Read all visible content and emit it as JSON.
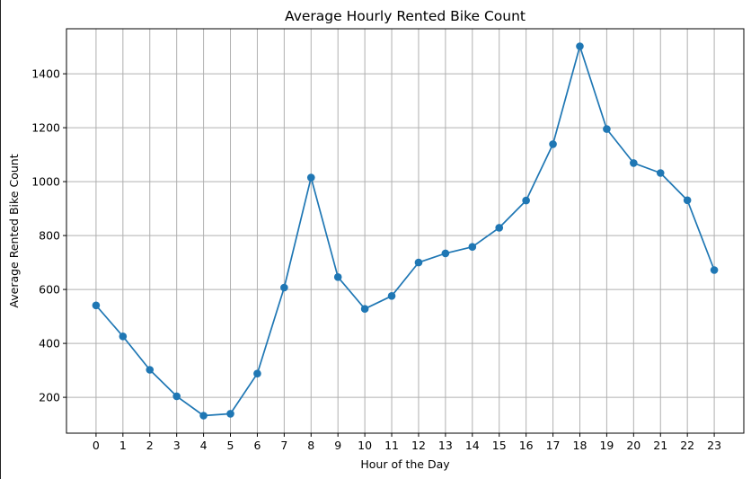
{
  "chart_data": {
    "type": "line",
    "title": "Average Hourly Rented Bike Count",
    "xlabel": "Hour of the Day",
    "ylabel": "Average Rented Bike Count",
    "x": [
      0,
      1,
      2,
      3,
      4,
      5,
      6,
      7,
      8,
      9,
      10,
      11,
      12,
      13,
      14,
      15,
      16,
      17,
      18,
      19,
      20,
      21,
      22,
      23
    ],
    "x_tick_labels": [
      "0",
      "1",
      "2",
      "3",
      "4",
      "5",
      "6",
      "7",
      "8",
      "9",
      "10",
      "11",
      "12",
      "13",
      "14",
      "15",
      "16",
      "17",
      "18",
      "19",
      "20",
      "21",
      "22",
      "23"
    ],
    "series": [
      {
        "values": [
          541,
          426,
          302,
          204,
          132,
          139,
          288,
          607,
          1015,
          646,
          528,
          576,
          700,
          734,
          758,
          829,
          930,
          1139,
          1502,
          1195,
          1069,
          1032,
          931,
          672
        ],
        "color": "#1f77b4",
        "marker": "circle"
      }
    ],
    "y_ticks": [
      200,
      400,
      600,
      800,
      1000,
      1200,
      1400
    ],
    "y_tick_labels": [
      "200",
      "400",
      "600",
      "800",
      "1000",
      "1200",
      "1400"
    ],
    "ylim": [
      67,
      1567
    ],
    "xlim": [
      -1.1,
      24.1
    ],
    "grid": true,
    "legend": "none"
  }
}
